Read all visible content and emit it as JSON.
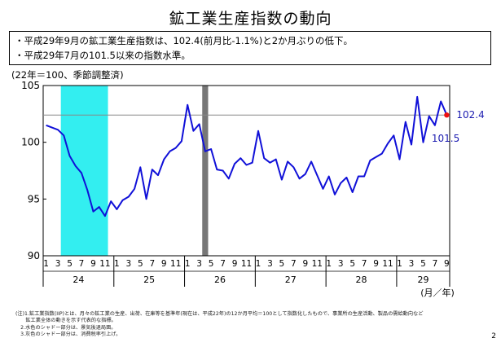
{
  "title": "鉱工業生産指数の動向",
  "bullets": [
    "・平成29年9月の鉱工業生産指数は、102.4(前月比-1.1%)と2か月ぶりの低下。",
    "・平成29年7月の101.5以来の指数水準。"
  ],
  "unit_label": "(22年＝100、季節調整済)",
  "chart_data": {
    "type": "line",
    "title": "",
    "xlabel": "(月／年)",
    "ylabel": "",
    "ylim": [
      90,
      105
    ],
    "yticks": [
      90,
      95,
      100,
      105
    ],
    "year_groups": [
      "24",
      "25",
      "26",
      "27",
      "28",
      "29"
    ],
    "month_tick_labels": [
      "1",
      "3",
      "5",
      "7",
      "9",
      "11"
    ],
    "last_year_month_labels": [
      "1",
      "3",
      "5",
      "7",
      "9"
    ],
    "reference_line": 102.4,
    "shaded_periods": [
      {
        "kind": "recession",
        "color": "#33eef0",
        "start": "2012-04",
        "end": "2012-11"
      },
      {
        "kind": "consumption-tax",
        "color": "#777777",
        "start": "2014-04",
        "end": "2014-04"
      }
    ],
    "series": [
      {
        "color": "#1010d8",
        "start": "2012-01",
        "values": [
          101.5,
          101.3,
          101.1,
          100.6,
          98.8,
          97.9,
          97.3,
          95.8,
          93.9,
          94.3,
          93.5,
          94.8,
          94.1,
          94.9,
          95.2,
          95.9,
          97.8,
          95.0,
          97.6,
          97.1,
          98.5,
          99.2,
          99.5,
          100.1,
          103.3,
          101.0,
          101.6,
          99.2,
          99.4,
          97.6,
          97.5,
          96.8,
          98.1,
          98.6,
          98.0,
          98.2,
          101.0,
          98.6,
          98.2,
          98.5,
          96.7,
          98.3,
          97.8,
          96.8,
          97.2,
          98.3,
          97.1,
          95.9,
          97.0,
          95.4,
          96.4,
          96.9,
          95.6,
          97.0,
          97.0,
          98.4,
          98.7,
          99.0,
          99.9,
          100.6,
          98.5,
          101.8,
          99.8,
          104.0,
          100.0,
          102.3,
          101.5,
          103.6,
          102.4
        ]
      }
    ],
    "annotations": [
      {
        "label": "102.4",
        "period": "2017-09",
        "value": 102.4
      },
      {
        "label": "101.5",
        "period": "2017-07",
        "value": 101.5
      }
    ]
  },
  "notes": [
    "(注)1.鉱工業指数(IIP)とは、月々の鉱工業の生産、出荷、在庫等を基準年(現在は、平成22年)の12か月平均＝100として指数化したもので、事業所の生産活動、製品の需給動向など",
    "　　鉱工業全体の動きを示す代表的な指標。",
    "　2.水色のシャドー部分は、景気後退局面。",
    "　3.灰色のシャドー部分は、消費税率引上げ。"
  ],
  "page_number": "2"
}
